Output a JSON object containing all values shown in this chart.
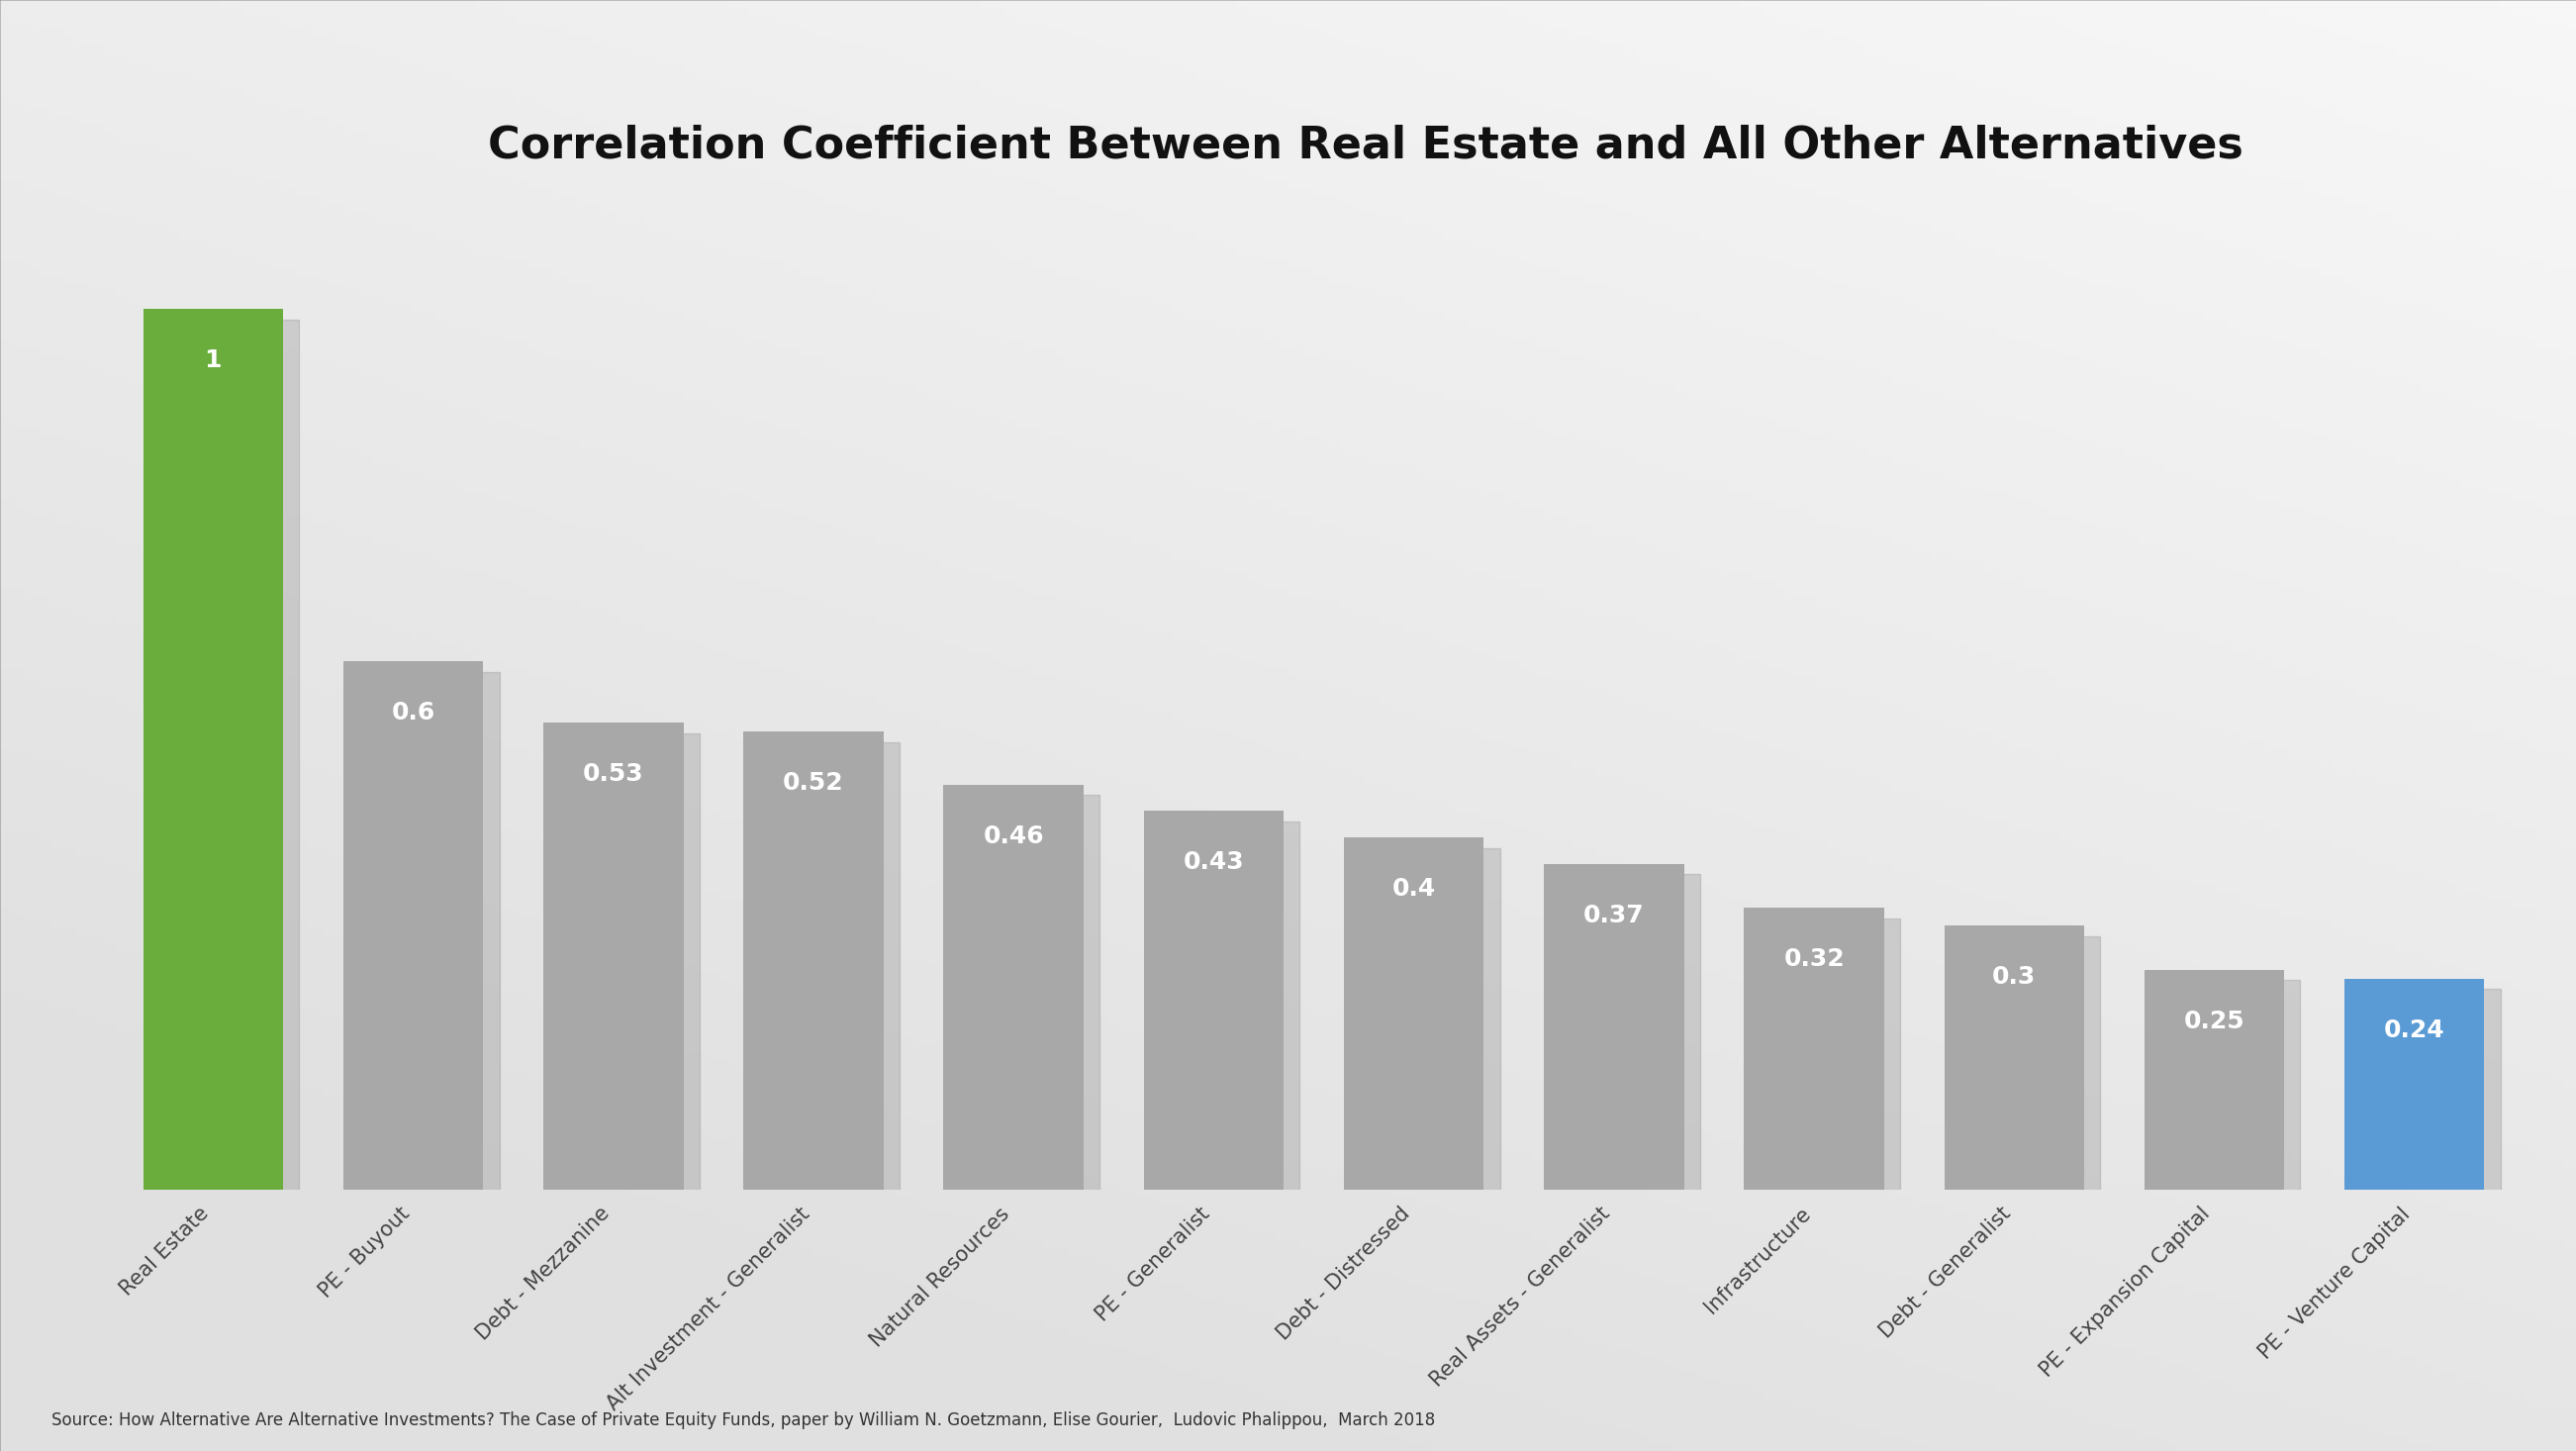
{
  "categories": [
    "Real Estate",
    "PE - Buyout",
    "Debt - Mezzanine",
    "Alt Investment - Generalist",
    "Natural Resources",
    "PE - Generalist",
    "Debt - Distressed",
    "Real Assets - Generalist",
    "Infrastructure",
    "Debt - Generalist",
    "PE - Expansion Capital",
    "PE - Venture Capital"
  ],
  "values": [
    1.0,
    0.6,
    0.53,
    0.52,
    0.46,
    0.43,
    0.4,
    0.37,
    0.32,
    0.3,
    0.25,
    0.24
  ],
  "bar_colors": [
    "#6aad3d",
    "#a8a8a8",
    "#a8a8a8",
    "#a8a8a8",
    "#a8a8a8",
    "#a8a8a8",
    "#a8a8a8",
    "#a8a8a8",
    "#a8a8a8",
    "#a8a8a8",
    "#a8a8a8",
    "#5b9bd5"
  ],
  "value_labels": [
    "1",
    "0.6",
    "0.53",
    "0.52",
    "0.46",
    "0.43",
    "0.4",
    "0.37",
    "0.32",
    "0.3",
    "0.25",
    "0.24"
  ],
  "title": "Correlation Coefficient Between Real Estate and All Other Alternatives",
  "title_fontsize": 32,
  "label_fontsize": 15,
  "value_fontsize": 18,
  "source_text": "Source: How Alternative Are Alternative Investments? The Case of Private Equity Funds, paper by William N. Goetzmann, Elise Gourier,  Ludovic Phalippou,  March 2018",
  "ylim": [
    0,
    1.12
  ],
  "bar_width": 0.7
}
